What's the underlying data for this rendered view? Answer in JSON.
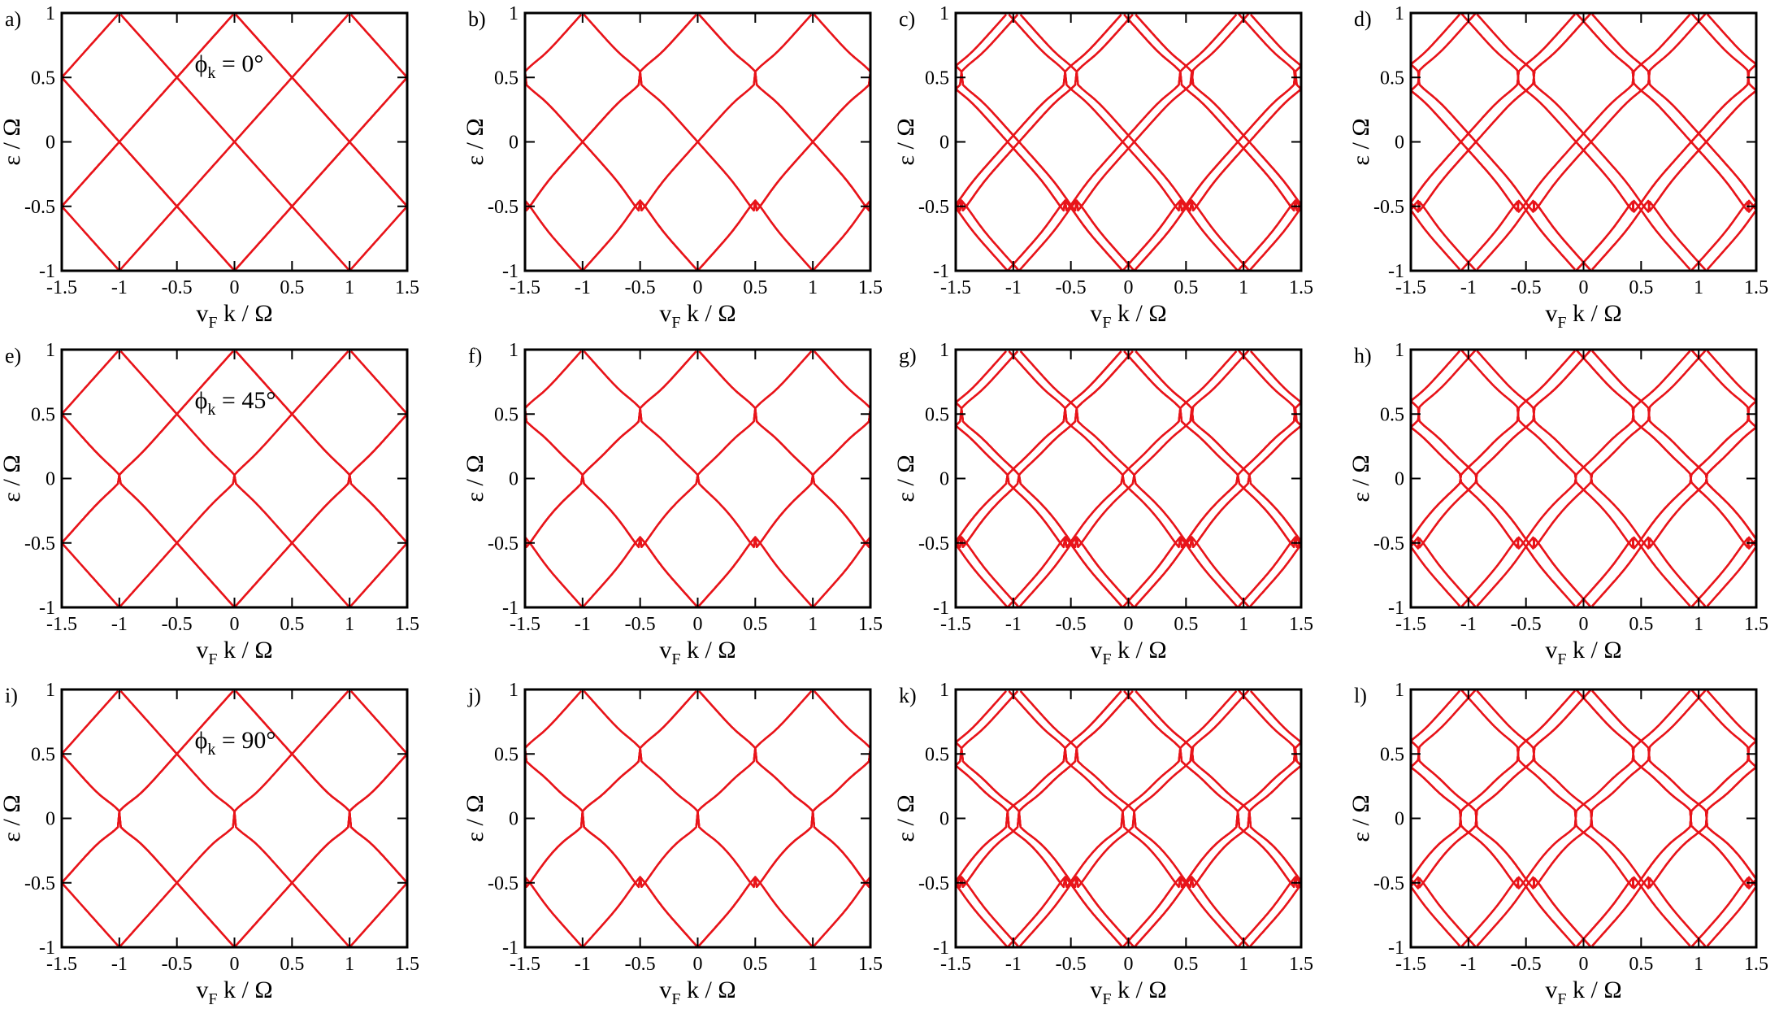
{
  "figure": {
    "series_color": "#e8141a",
    "frame_color": "#000000",
    "background": "#ffffff"
  },
  "chart_data": [
    {
      "panel": "a)",
      "type": "line",
      "annotation": {
        "main": "ϕ",
        "sub": "k",
        "rest": " = 0°"
      },
      "model": {
        "phi_deg": 0,
        "eta": 0.0,
        "split": 0.0
      },
      "xlabel": {
        "main": "v",
        "sub": "F",
        "rest": " k / Ω"
      },
      "ylabel": "ε / Ω",
      "xlim": [
        -1.5,
        1.5
      ],
      "ylim": [
        -1,
        1
      ],
      "xticks": [
        "-1.5",
        "-1",
        "-0.5",
        "0",
        "0.5",
        "1",
        "1.5"
      ],
      "yticks": [
        "-1",
        "-0.5",
        "0",
        "0.5",
        "1"
      ],
      "grid": false,
      "legend": "none"
    },
    {
      "panel": "b)",
      "type": "line",
      "model": {
        "phi_deg": 0,
        "eta": 0.09,
        "split": 0.0
      },
      "xlabel": {
        "main": "v",
        "sub": "F",
        "rest": " k / Ω"
      },
      "ylabel": "ε / Ω",
      "xlim": [
        -1.5,
        1.5
      ],
      "ylim": [
        -1,
        1
      ],
      "xticks": [
        "-1.5",
        "-1",
        "-0.5",
        "0",
        "0.5",
        "1",
        "1.5"
      ],
      "yticks": [
        "-1",
        "-0.5",
        "0",
        "0.5",
        "1"
      ],
      "grid": false,
      "legend": "none"
    },
    {
      "panel": "c)",
      "type": "line",
      "model": {
        "phi_deg": 0,
        "eta": 0.09,
        "split": 0.1
      },
      "xlabel": {
        "main": "v",
        "sub": "F",
        "rest": " k / Ω"
      },
      "ylabel": "ε / Ω",
      "xlim": [
        -1.5,
        1.5
      ],
      "ylim": [
        -1,
        1
      ],
      "xticks": [
        "-1.5",
        "-1",
        "-0.5",
        "0",
        "0.5",
        "1",
        "1.5"
      ],
      "yticks": [
        "-1",
        "-0.5",
        "0",
        "0.5",
        "1"
      ],
      "grid": false,
      "legend": "none"
    },
    {
      "panel": "d)",
      "type": "line",
      "model": {
        "phi_deg": 0,
        "eta": 0.09,
        "split": 0.13
      },
      "xlabel": {
        "main": "v",
        "sub": "F",
        "rest": " k / Ω"
      },
      "ylabel": "ε / Ω",
      "xlim": [
        -1.5,
        1.5
      ],
      "ylim": [
        -1,
        1
      ],
      "xticks": [
        "-1.5",
        "-1",
        "-0.5",
        "0",
        "0.5",
        "1",
        "1.5"
      ],
      "yticks": [
        "-1",
        "-0.5",
        "0",
        "0.5",
        "1"
      ],
      "grid": false,
      "legend": "none"
    },
    {
      "panel": "e)",
      "type": "line",
      "annotation": {
        "main": "ϕ",
        "sub": "k",
        "rest": " = 45°"
      },
      "model": {
        "phi_deg": 45,
        "eta": 0.0,
        "split": 0.0
      },
      "xlabel": {
        "main": "v",
        "sub": "F",
        "rest": " k / Ω"
      },
      "ylabel": "ε / Ω",
      "xlim": [
        -1.5,
        1.5
      ],
      "ylim": [
        -1,
        1
      ],
      "xticks": [
        "-1.5",
        "-1",
        "-0.5",
        "0",
        "0.5",
        "1",
        "1.5"
      ],
      "yticks": [
        "-1",
        "-0.5",
        "0",
        "0.5",
        "1"
      ],
      "grid": false,
      "legend": "none"
    },
    {
      "panel": "f)",
      "type": "line",
      "model": {
        "phi_deg": 45,
        "eta": 0.09,
        "split": 0.0
      },
      "xlabel": {
        "main": "v",
        "sub": "F",
        "rest": " k / Ω"
      },
      "ylabel": "ε / Ω",
      "xlim": [
        -1.5,
        1.5
      ],
      "ylim": [
        -1,
        1
      ],
      "xticks": [
        "-1.5",
        "-1",
        "-0.5",
        "0",
        "0.5",
        "1",
        "1.5"
      ],
      "yticks": [
        "-1",
        "-0.5",
        "0",
        "0.5",
        "1"
      ],
      "grid": false,
      "legend": "none"
    },
    {
      "panel": "g)",
      "type": "line",
      "model": {
        "phi_deg": 45,
        "eta": 0.09,
        "split": 0.1
      },
      "xlabel": {
        "main": "v",
        "sub": "F",
        "rest": " k / Ω"
      },
      "ylabel": "ε / Ω",
      "xlim": [
        -1.5,
        1.5
      ],
      "ylim": [
        -1,
        1
      ],
      "xticks": [
        "-1.5",
        "-1",
        "-0.5",
        "0",
        "0.5",
        "1",
        "1.5"
      ],
      "yticks": [
        "-1",
        "-0.5",
        "0",
        "0.5",
        "1"
      ],
      "grid": false,
      "legend": "none"
    },
    {
      "panel": "h)",
      "type": "line",
      "model": {
        "phi_deg": 45,
        "eta": 0.09,
        "split": 0.13
      },
      "xlabel": {
        "main": "v",
        "sub": "F",
        "rest": " k / Ω"
      },
      "ylabel": "ε / Ω",
      "xlim": [
        -1.5,
        1.5
      ],
      "ylim": [
        -1,
        1
      ],
      "xticks": [
        "-1.5",
        "-1",
        "-0.5",
        "0",
        "0.5",
        "1",
        "1.5"
      ],
      "yticks": [
        "-1",
        "-0.5",
        "0",
        "0.5",
        "1"
      ],
      "grid": false,
      "legend": "none"
    },
    {
      "panel": "i)",
      "type": "line",
      "annotation": {
        "main": "ϕ",
        "sub": "k",
        "rest": " = 90°"
      },
      "model": {
        "phi_deg": 90,
        "eta": 0.0,
        "split": 0.0
      },
      "xlabel": {
        "main": "v",
        "sub": "F",
        "rest": " k / Ω"
      },
      "ylabel": "ε / Ω",
      "xlim": [
        -1.5,
        1.5
      ],
      "ylim": [
        -1,
        1
      ],
      "xticks": [
        "-1.5",
        "-1",
        "-0.5",
        "0",
        "0.5",
        "1",
        "1.5"
      ],
      "yticks": [
        "-1",
        "-0.5",
        "0",
        "0.5",
        "1"
      ],
      "grid": false,
      "legend": "none"
    },
    {
      "panel": "j)",
      "type": "line",
      "model": {
        "phi_deg": 90,
        "eta": 0.09,
        "split": 0.0
      },
      "xlabel": {
        "main": "v",
        "sub": "F",
        "rest": " k / Ω"
      },
      "ylabel": "ε / Ω",
      "xlim": [
        -1.5,
        1.5
      ],
      "ylim": [
        -1,
        1
      ],
      "xticks": [
        "-1.5",
        "-1",
        "-0.5",
        "0",
        "0.5",
        "1",
        "1.5"
      ],
      "yticks": [
        "-1",
        "-0.5",
        "0",
        "0.5",
        "1"
      ],
      "grid": false,
      "legend": "none"
    },
    {
      "panel": "k)",
      "type": "line",
      "model": {
        "phi_deg": 90,
        "eta": 0.09,
        "split": 0.1
      },
      "xlabel": {
        "main": "v",
        "sub": "F",
        "rest": " k / Ω"
      },
      "ylabel": "ε / Ω",
      "xlim": [
        -1.5,
        1.5
      ],
      "ylim": [
        -1,
        1
      ],
      "xticks": [
        "-1.5",
        "-1",
        "-0.5",
        "0",
        "0.5",
        "1",
        "1.5"
      ],
      "yticks": [
        "-1",
        "-0.5",
        "0",
        "0.5",
        "1"
      ],
      "grid": false,
      "legend": "none"
    },
    {
      "panel": "l)",
      "type": "line",
      "model": {
        "phi_deg": 90,
        "eta": 0.09,
        "split": 0.13
      },
      "xlabel": {
        "main": "v",
        "sub": "F",
        "rest": " k / Ω"
      },
      "ylabel": "ε / Ω",
      "xlim": [
        -1.5,
        1.5
      ],
      "ylim": [
        -1,
        1
      ],
      "xticks": [
        "-1.5",
        "-1",
        "-0.5",
        "0",
        "0.5",
        "1",
        "1.5"
      ],
      "yticks": [
        "-1",
        "-0.5",
        "0",
        "0.5",
        "1"
      ],
      "grid": false,
      "legend": "none"
    }
  ]
}
